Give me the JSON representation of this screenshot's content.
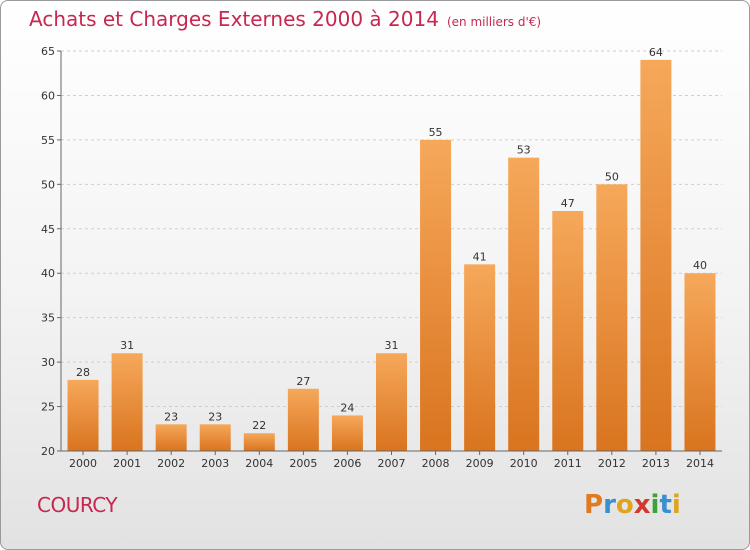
{
  "chart_data": {
    "type": "bar",
    "title": "Achats et Charges Externes 2000 à 2014",
    "subtitle": "(en milliers d'€)",
    "categories": [
      "2000",
      "2001",
      "2002",
      "2003",
      "2004",
      "2005",
      "2006",
      "2007",
      "2008",
      "2009",
      "2010",
      "2011",
      "2012",
      "2013",
      "2014"
    ],
    "values": [
      28,
      31,
      23,
      23,
      22,
      27,
      24,
      31,
      55,
      41,
      53,
      47,
      50,
      64,
      40
    ],
    "ylim": [
      20,
      65
    ],
    "yticks": [
      20,
      25,
      30,
      35,
      40,
      45,
      50,
      55,
      60,
      65
    ],
    "grid": true,
    "xlabel": "",
    "ylabel": "",
    "bar_color_light": "#f6a85a",
    "bar_color_dark": "#d9741f"
  },
  "commune": "COURCY",
  "logo": {
    "letters": [
      "P",
      "r",
      "o",
      "x",
      "i",
      "t",
      "i"
    ],
    "colors": [
      "#e07a1f",
      "#3a8fd0",
      "#e0a31f",
      "#d3372e",
      "#3ba33a",
      "#3a8fd0",
      "#e0a31f"
    ]
  }
}
